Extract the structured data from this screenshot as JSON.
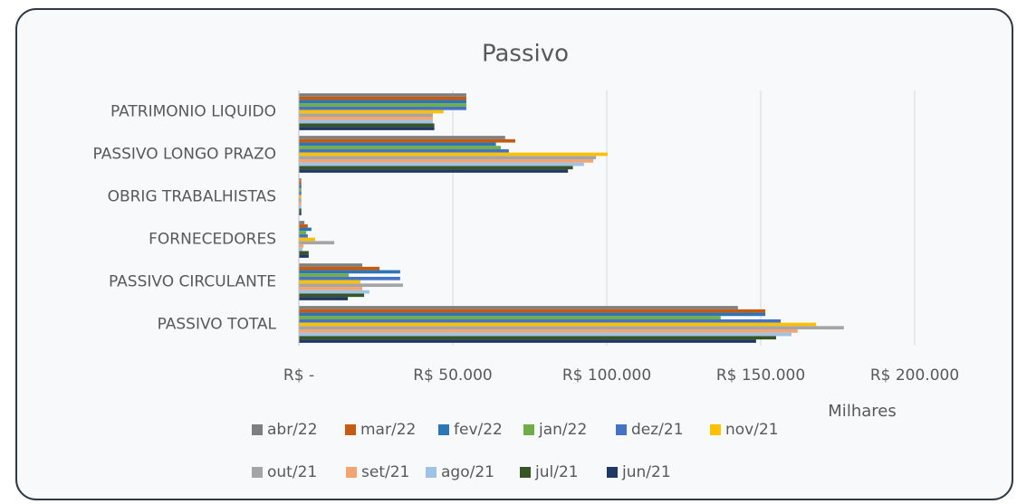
{
  "chart_data": {
    "type": "hbar",
    "title": "Passivo",
    "x_label": "Milhares",
    "categories": [
      "PATRIMONIO LIQUIDO",
      "PASSIVO LONGO PRAZO",
      "OBRIG TRABALHISTAS",
      "FORNECEDORES",
      "PASSIVO CIRCULANTE",
      "PASSIVO TOTAL"
    ],
    "series": [
      {
        "name": "abr/22",
        "color": "#7f7f7f",
        "values": [
          54400,
          67000,
          800,
          1800,
          20600,
          142600
        ]
      },
      {
        "name": "mar/22",
        "color": "#c55a11",
        "values": [
          54400,
          70300,
          800,
          2900,
          26200,
          151500
        ]
      },
      {
        "name": "fev/22",
        "color": "#2e75b6",
        "values": [
          54400,
          64000,
          800,
          4100,
          32900,
          151500
        ]
      },
      {
        "name": "jan/22",
        "color": "#70ad47",
        "values": [
          54400,
          65600,
          800,
          2400,
          16200,
          137000
        ]
      },
      {
        "name": "dez/21",
        "color": "#4472c4",
        "values": [
          54400,
          68200,
          800,
          2900,
          32900,
          156500
        ]
      },
      {
        "name": "nov/21",
        "color": "#ffc000",
        "values": [
          47000,
          100300,
          800,
          5300,
          20000,
          168000
        ]
      },
      {
        "name": "out/21",
        "color": "#a5a5a5",
        "values": [
          43500,
          96500,
          800,
          11500,
          33800,
          177000
        ]
      },
      {
        "name": "set/21",
        "color": "#f4a470",
        "values": [
          43500,
          95600,
          800,
          1500,
          20600,
          162000
        ]
      },
      {
        "name": "ago/21",
        "color": "#9dc3e6",
        "values": [
          43500,
          92600,
          800,
          1200,
          22900,
          160000
        ]
      },
      {
        "name": "jul/21",
        "color": "#375623",
        "values": [
          44000,
          89000,
          800,
          3200,
          21200,
          155000
        ]
      },
      {
        "name": "jun/21",
        "color": "#203864",
        "values": [
          44000,
          87400,
          800,
          3200,
          15900,
          148500
        ]
      }
    ],
    "xlim": [
      0,
      200000
    ],
    "xticks": [
      {
        "value": 0,
        "label": "R$ -"
      },
      {
        "value": 50000,
        "label": "R$ 50.000"
      },
      {
        "value": 100000,
        "label": "R$ 100.000"
      },
      {
        "value": 150000,
        "label": "R$ 150.000"
      },
      {
        "value": 200000,
        "label": "R$ 200.000"
      }
    ],
    "grid": true
  }
}
